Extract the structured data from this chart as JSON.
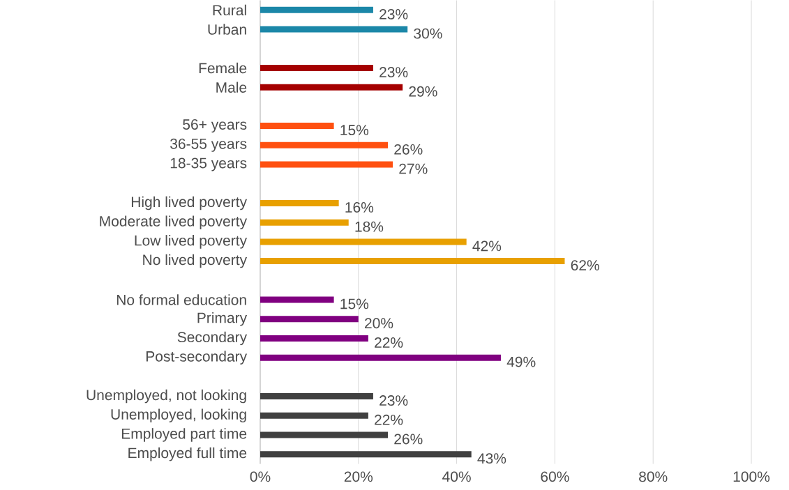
{
  "chart_data": {
    "type": "bar",
    "orientation": "horizontal",
    "categories": [
      "Rural",
      "Urban",
      null,
      "Female",
      "Male",
      null,
      "56+ years",
      "36-55 years",
      "18-35 years",
      null,
      "High lived poverty",
      "Moderate lived poverty",
      "Low lived poverty",
      "No lived poverty",
      null,
      "No formal education",
      "Primary",
      "Secondary",
      "Post-secondary",
      null,
      "Unemployed, not looking",
      "Unemployed, looking",
      "Employed part time",
      "Employed full time"
    ],
    "values": [
      23,
      30,
      null,
      23,
      29,
      null,
      15,
      26,
      27,
      null,
      16,
      18,
      42,
      62,
      null,
      15,
      20,
      22,
      49,
      null,
      23,
      22,
      26,
      43
    ],
    "value_labels": [
      "23%",
      "30%",
      null,
      "23%",
      "29%",
      null,
      "15%",
      "26%",
      "27%",
      null,
      "16%",
      "18%",
      "42%",
      "62%",
      null,
      "15%",
      "20%",
      "22%",
      "49%",
      null,
      "23%",
      "22%",
      "26%",
      "43%"
    ],
    "colors": [
      "#1b87a8",
      "#1b87a8",
      null,
      "#a50000",
      "#a50000",
      null,
      "#ff5010",
      "#ff5010",
      "#ff5010",
      null,
      "#e8a000",
      "#e8a000",
      "#e8a000",
      "#e8a000",
      null,
      "#800080",
      "#800080",
      "#800080",
      "#800080",
      null,
      "#404040",
      "#404040",
      "#404040",
      "#404040"
    ],
    "xlim": [
      0,
      100
    ],
    "xticks": [
      {
        "value": 0,
        "label": "0%"
      },
      {
        "value": 20,
        "label": "20%"
      },
      {
        "value": 40,
        "label": "40%"
      },
      {
        "value": 60,
        "label": "60%"
      },
      {
        "value": 80,
        "label": "80%"
      },
      {
        "value": 100,
        "label": "100%"
      }
    ],
    "grid": "x"
  }
}
